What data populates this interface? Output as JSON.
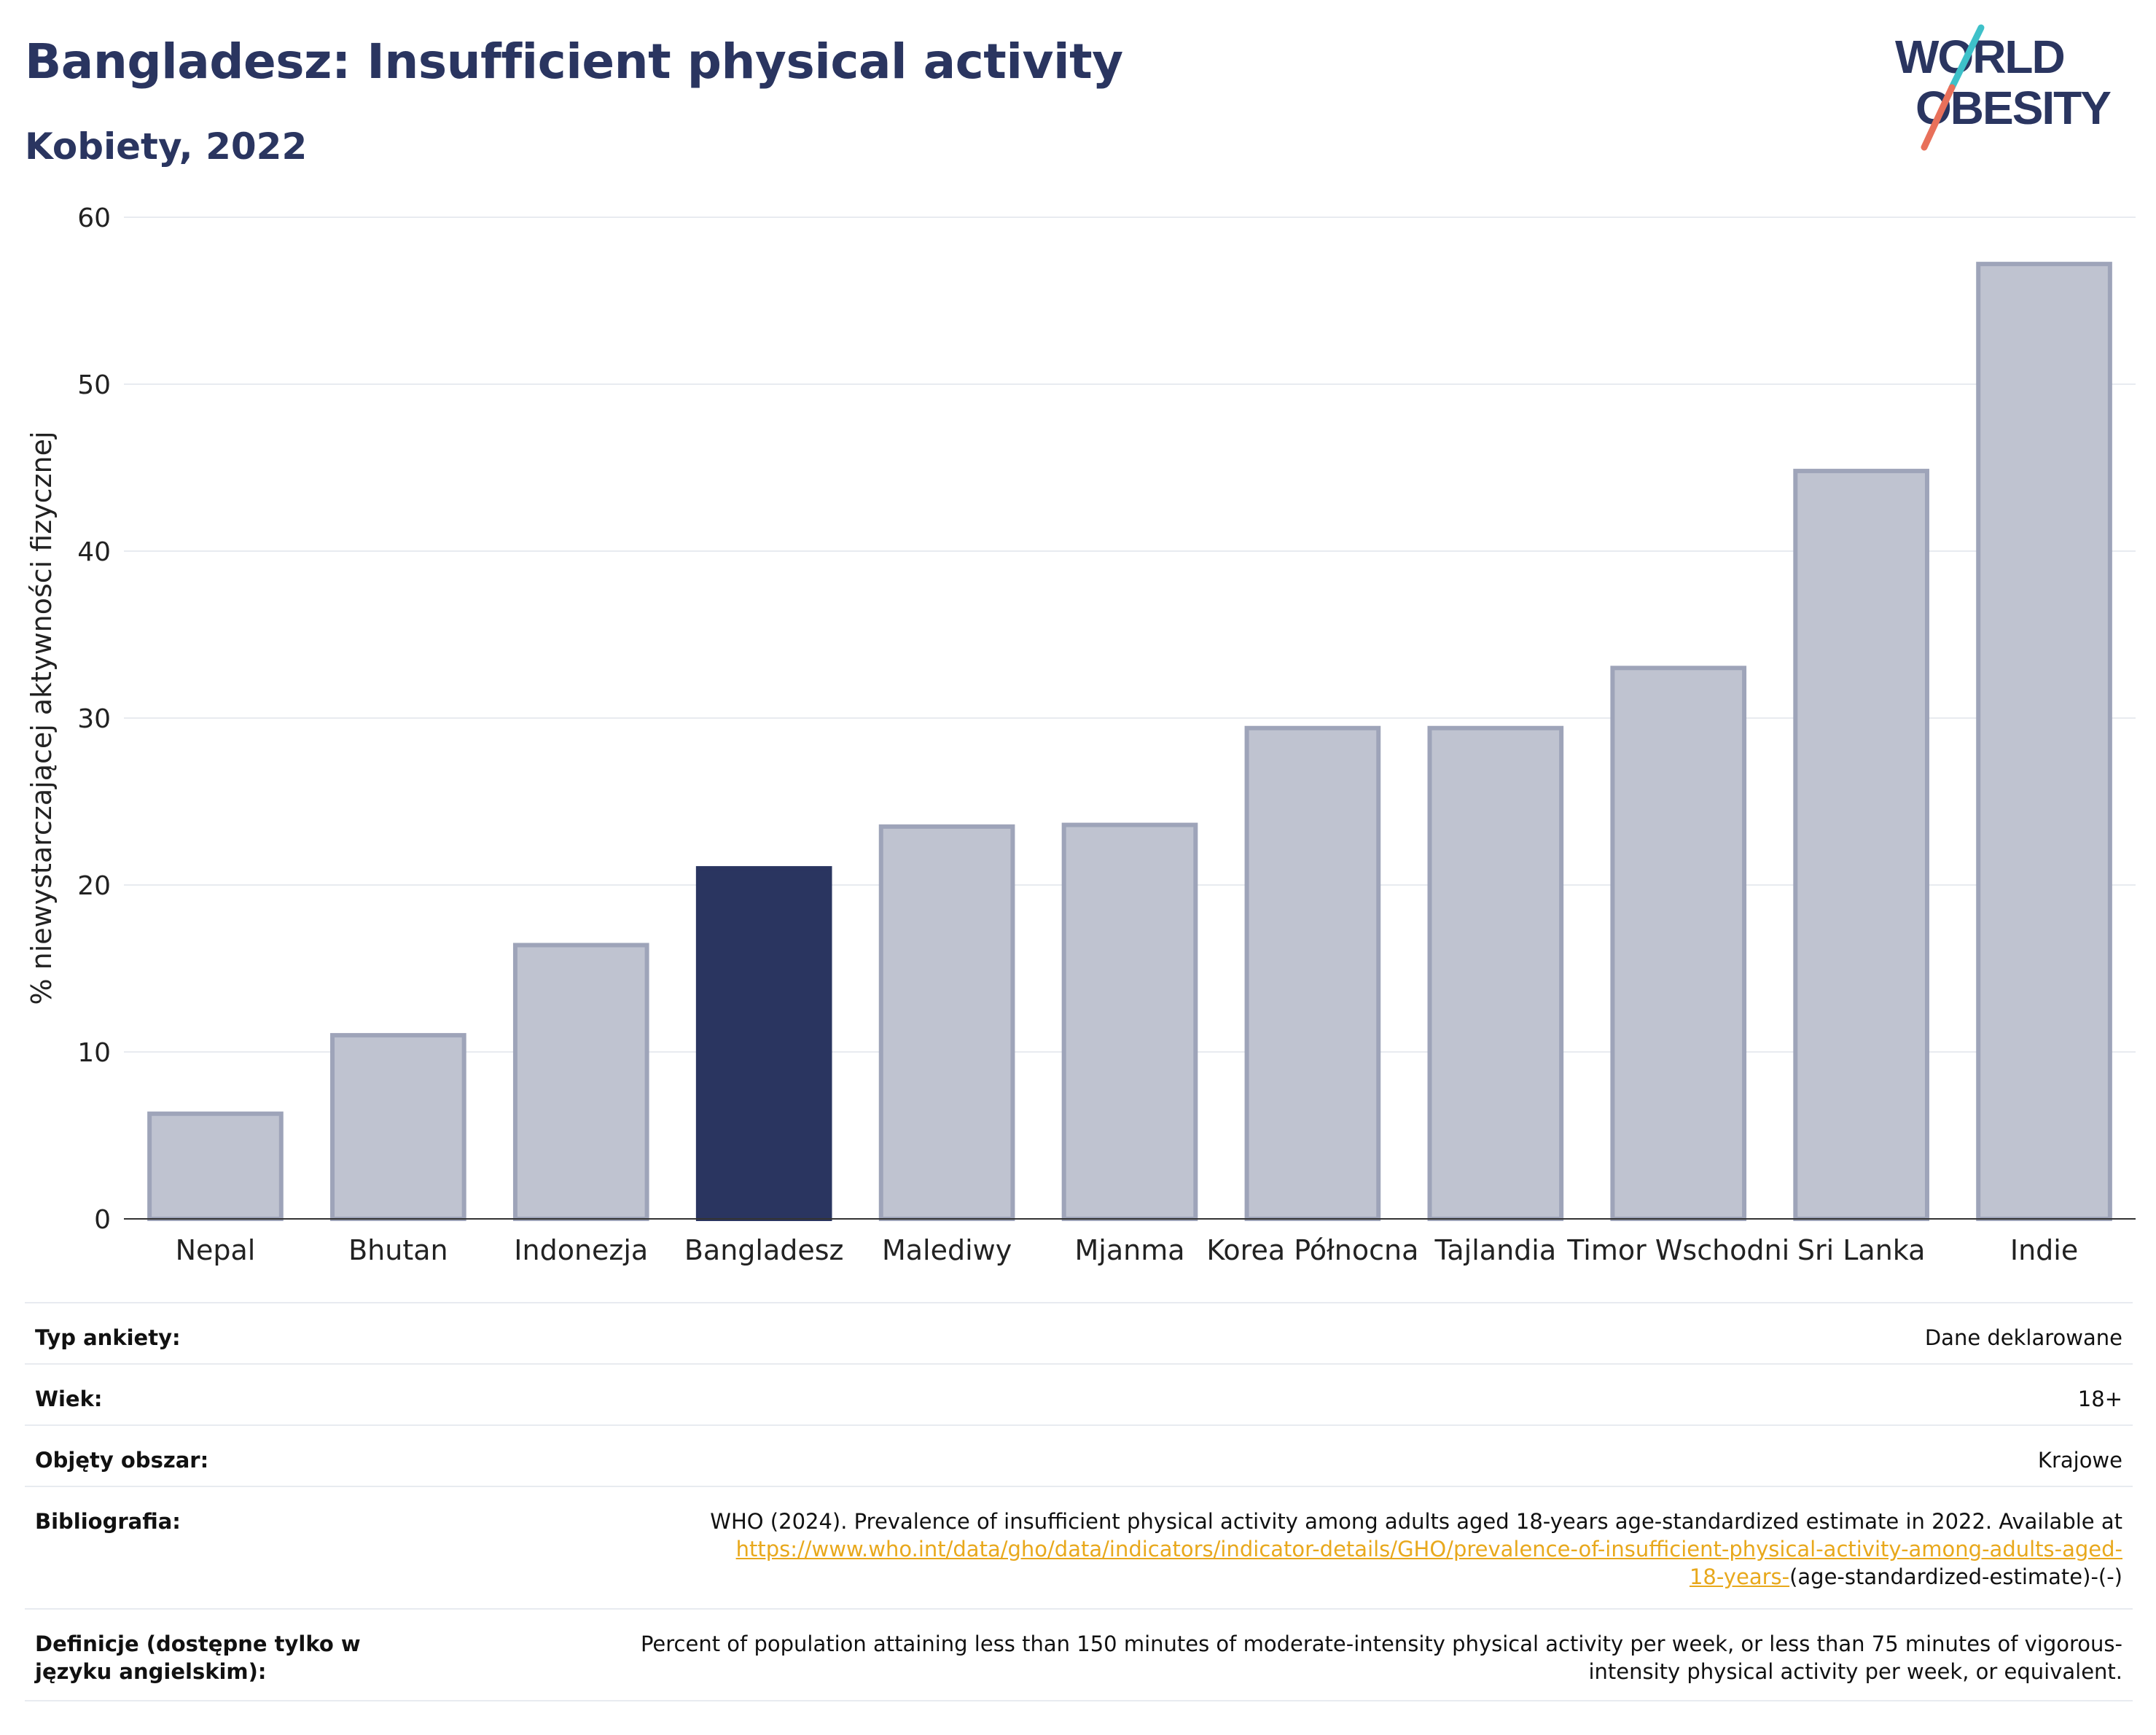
{
  "title": "Bangladesz: Insufficient physical activity",
  "subtitle": "Kobiety, 2022",
  "logo": {
    "line1": "WORLD",
    "line2": "OBESITY",
    "colors": {
      "navy": "#2a3560",
      "teal": "#3ec1c9",
      "coral": "#e8705a"
    }
  },
  "chart_data": {
    "type": "bar",
    "categories": [
      "Nepal",
      "Bhutan",
      "Indonezja",
      "Bangladesz",
      "Malediwy",
      "Mjanma",
      "Korea Północna",
      "Tajlandia",
      "Timor Wschodni",
      "Sri Lanka",
      "Indie"
    ],
    "values": [
      6.3,
      11.0,
      16.4,
      21.0,
      23.5,
      23.6,
      29.4,
      29.4,
      33.0,
      44.8,
      57.2
    ],
    "highlight": "Bangladesz",
    "ylabel": "% niewystarczającej aktywności fizycznej",
    "ylim": [
      0,
      60
    ],
    "yticks": [
      0,
      10,
      20,
      30,
      40,
      50,
      60
    ],
    "grid": true,
    "colors": {
      "bar": "#bfc3d0",
      "bar_stroke": "#9ea4b9",
      "highlight": "#2a3560",
      "grid": "#e8ebf0",
      "axis": "#333333"
    }
  },
  "meta": [
    {
      "label": "Typ ankiety:",
      "value": "Dane deklarowane"
    },
    {
      "label": "Wiek:",
      "value": "18+"
    },
    {
      "label": "Objęty obszar:",
      "value": "Krajowe"
    },
    {
      "label": "Bibliografia:",
      "value": "WHO (2024). Prevalence of insufficient physical activity among adults aged 18-years age-standardized estimate in 2022. Available at",
      "link_line1": "https://www.who.int/data/gho/data/indicators/indicator-details/GHO/prevalence-of-insufficient-physical-activity-among-adults-aged-",
      "link_line2": "18-years-",
      "after_link": "(age-standardized-estimate)-(-)"
    },
    {
      "label": "Definicje (dostępne tylko w języku angielskim):",
      "value": "Percent of population attaining less than 150 minutes of moderate-intensity physical activity per week, or less than 75 minutes of vigorous-intensity physical activity per week, or equivalent."
    }
  ]
}
